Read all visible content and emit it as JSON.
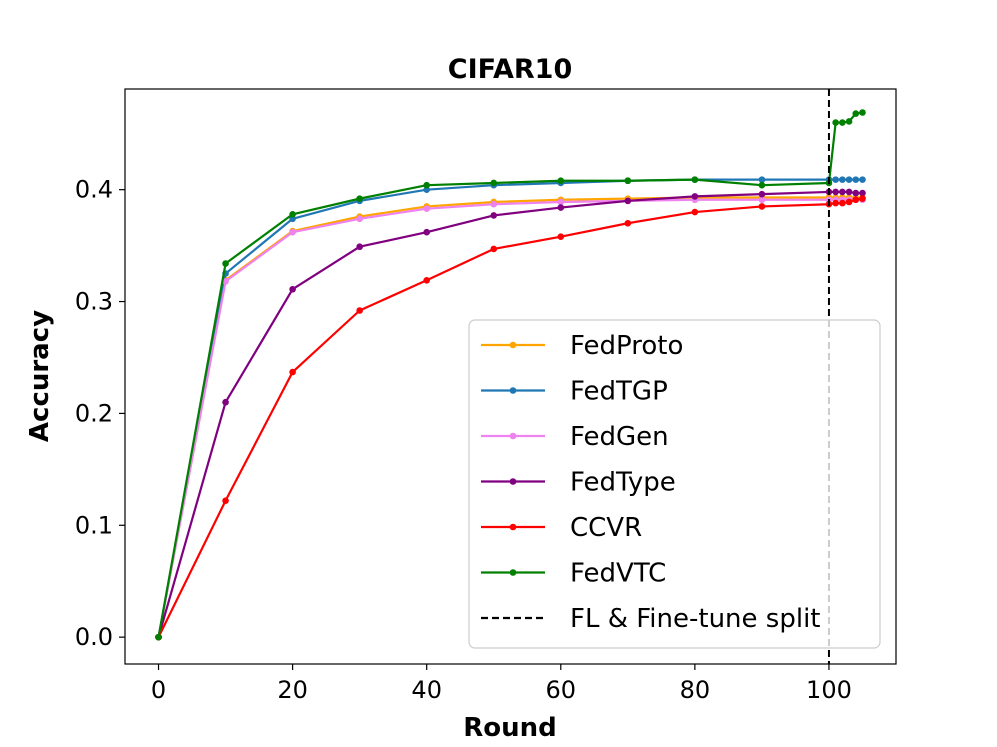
{
  "chart_data": {
    "type": "line",
    "title": "CIFAR10",
    "xlabel": "Round",
    "ylabel": "Accuracy",
    "xlim": [
      -5,
      110
    ],
    "ylim": [
      -0.024,
      0.49
    ],
    "xticks": [
      0,
      20,
      40,
      60,
      80,
      100
    ],
    "xtick_labels": [
      "0",
      "20",
      "40",
      "60",
      "80",
      "100"
    ],
    "yticks": [
      0.0,
      0.1,
      0.2,
      0.3,
      0.4
    ],
    "ytick_labels": [
      "0.0",
      "0.1",
      "0.2",
      "0.3",
      "0.4"
    ],
    "grid": false,
    "legend_position": "lower-right",
    "series": [
      {
        "name": "FedProto",
        "color": "#ffa500",
        "x": [
          0,
          10,
          20,
          30,
          40,
          50,
          60,
          70,
          80,
          90,
          100,
          101,
          102,
          103,
          104,
          105
        ],
        "values": [
          0.0,
          0.319,
          0.363,
          0.376,
          0.385,
          0.389,
          0.391,
          0.392,
          0.393,
          0.393,
          0.393,
          0.393,
          0.393,
          0.393,
          0.393,
          0.393
        ]
      },
      {
        "name": "FedTGP",
        "color": "#1f77b4",
        "x": [
          0,
          10,
          20,
          30,
          40,
          50,
          60,
          70,
          80,
          90,
          100,
          101,
          102,
          103,
          104,
          105
        ],
        "values": [
          0.0,
          0.325,
          0.374,
          0.39,
          0.4,
          0.404,
          0.406,
          0.408,
          0.409,
          0.409,
          0.409,
          0.409,
          0.409,
          0.409,
          0.409,
          0.409
        ]
      },
      {
        "name": "FedGen",
        "color": "#ee82ee",
        "x": [
          0,
          10,
          20,
          30,
          40,
          50,
          60,
          70,
          80,
          90,
          100,
          101,
          102,
          103,
          104,
          105
        ],
        "values": [
          0.0,
          0.318,
          0.362,
          0.374,
          0.383,
          0.387,
          0.389,
          0.39,
          0.391,
          0.391,
          0.391,
          0.391,
          0.391,
          0.391,
          0.391,
          0.391
        ]
      },
      {
        "name": "FedType",
        "color": "#800080",
        "x": [
          0,
          10,
          20,
          30,
          40,
          50,
          60,
          70,
          80,
          90,
          100,
          101,
          102,
          103,
          104,
          105
        ],
        "values": [
          0.0,
          0.21,
          0.311,
          0.349,
          0.362,
          0.377,
          0.384,
          0.39,
          0.394,
          0.396,
          0.398,
          0.398,
          0.398,
          0.398,
          0.397,
          0.397
        ]
      },
      {
        "name": "CCVR",
        "color": "#ff0000",
        "x": [
          0,
          10,
          20,
          30,
          40,
          50,
          60,
          70,
          80,
          90,
          100,
          101,
          102,
          103,
          104,
          105
        ],
        "values": [
          0.0,
          0.122,
          0.237,
          0.292,
          0.319,
          0.347,
          0.358,
          0.37,
          0.38,
          0.385,
          0.387,
          0.388,
          0.388,
          0.389,
          0.391,
          0.392
        ]
      },
      {
        "name": "FedVTC",
        "color": "#008000",
        "x": [
          0,
          10,
          20,
          30,
          40,
          50,
          60,
          70,
          80,
          90,
          100,
          101,
          102,
          103,
          104,
          105
        ],
        "values": [
          0.0,
          0.334,
          0.378,
          0.392,
          0.404,
          0.406,
          0.408,
          0.408,
          0.409,
          0.404,
          0.406,
          0.46,
          0.46,
          0.461,
          0.468,
          0.469
        ]
      }
    ],
    "vline": {
      "x": 100,
      "label": "FL & Fine-tune split",
      "color": "#000000",
      "style": "dashed"
    }
  }
}
